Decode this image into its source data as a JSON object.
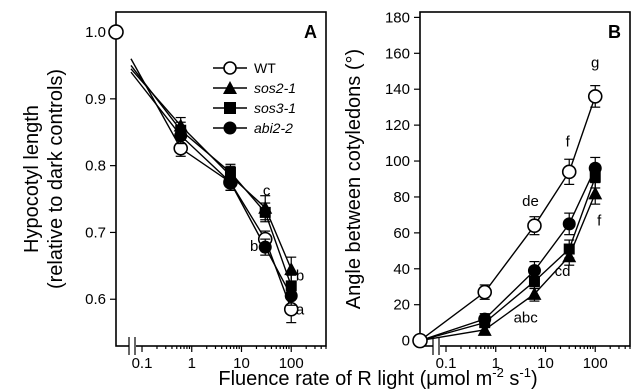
{
  "chart_data": [
    {
      "panel": "A",
      "type": "line",
      "ylabel_line1": "Hypocotyl length",
      "ylabel_line2": "(relative to dark controls)",
      "xscale": "log",
      "xlim": [
        0.03,
        500
      ],
      "ylim": [
        0.53,
        1.03
      ],
      "xticks": [
        {
          "v": 0.1,
          "label": "0.1"
        },
        {
          "v": 1,
          "label": "1"
        },
        {
          "v": 10,
          "label": "10"
        },
        {
          "v": 100,
          "label": "100"
        }
      ],
      "yticks": [
        {
          "v": 0.6,
          "label": "0.6"
        },
        {
          "v": 0.7,
          "label": "0.7"
        },
        {
          "v": 0.8,
          "label": "0.8"
        },
        {
          "v": 0.9,
          "label": "0.9"
        },
        {
          "v": 1.0,
          "label": "1.0"
        }
      ],
      "dark_point": {
        "y": 1.0
      },
      "x": [
        0.6,
        6,
        30,
        100
      ],
      "series": [
        {
          "name": "WT",
          "marker": "circle-open",
          "values": [
            0.826,
            0.775,
            0.69,
            0.585
          ],
          "err": [
            0.012,
            0.012,
            0.012,
            0.02
          ],
          "start": [
            0.06,
            0.96
          ]
        },
        {
          "name": "sos2-1",
          "marker": "triangle",
          "values": [
            0.86,
            0.785,
            0.737,
            0.645
          ],
          "err": [
            0.012,
            0.014,
            0.018,
            0.018
          ],
          "start": [
            0.06,
            0.945
          ]
        },
        {
          "name": "sos3-1",
          "marker": "square",
          "values": [
            0.853,
            0.79,
            0.73,
            0.62
          ],
          "err": [
            0.012,
            0.012,
            0.014,
            0.016
          ],
          "start": [
            0.06,
            0.95
          ]
        },
        {
          "name": "abi2-2",
          "marker": "circle",
          "values": [
            0.845,
            0.775,
            0.678,
            0.605
          ],
          "err": [
            0.012,
            0.012,
            0.012,
            0.014
          ],
          "start": [
            0.06,
            0.94
          ]
        }
      ],
      "annotations": [
        {
          "text": "c",
          "x": 32,
          "y": 0.755
        },
        {
          "text": "b",
          "x": 18,
          "y": 0.672
        },
        {
          "text": "b",
          "x": 150,
          "y": 0.628
        },
        {
          "text": "a",
          "x": 150,
          "y": 0.577
        }
      ],
      "legend": "top-right"
    },
    {
      "panel": "B",
      "type": "line",
      "ylabel": "Angle between cotyledons (°)",
      "xscale": "log",
      "xlim": [
        0.03,
        500
      ],
      "ylim": [
        -3,
        183
      ],
      "xticks": [
        {
          "v": 0.1,
          "label": "0.1"
        },
        {
          "v": 1,
          "label": "1"
        },
        {
          "v": 10,
          "label": "10"
        },
        {
          "v": 100,
          "label": "100"
        }
      ],
      "yticks": [
        {
          "v": 0,
          "label": "0"
        },
        {
          "v": 20,
          "label": "20"
        },
        {
          "v": 40,
          "label": "40"
        },
        {
          "v": 60,
          "label": "60"
        },
        {
          "v": 80,
          "label": "80"
        },
        {
          "v": 100,
          "label": "100"
        },
        {
          "v": 120,
          "label": "120"
        },
        {
          "v": 140,
          "label": "140"
        },
        {
          "v": 160,
          "label": "160"
        },
        {
          "v": 180,
          "label": "180"
        }
      ],
      "dark_point": {
        "y": 0
      },
      "x": [
        0.6,
        6,
        30,
        100
      ],
      "series": [
        {
          "name": "WT",
          "marker": "circle-open",
          "values": [
            27,
            64,
            94,
            136
          ],
          "err": [
            4,
            5,
            7,
            6
          ]
        },
        {
          "name": "sos2-1",
          "marker": "triangle",
          "values": [
            6,
            26,
            47,
            82
          ],
          "err": [
            2,
            4,
            5,
            6
          ]
        },
        {
          "name": "sos3-1",
          "marker": "square",
          "values": [
            10,
            33,
            51,
            91
          ],
          "err": [
            2,
            4,
            5,
            6
          ]
        },
        {
          "name": "abi2-2",
          "marker": "circle",
          "values": [
            12,
            39,
            65,
            96
          ],
          "err": [
            3,
            5,
            6,
            6
          ]
        }
      ],
      "annotations": [
        {
          "text": "g",
          "x": 100,
          "y": 152
        },
        {
          "text": "f",
          "x": 28,
          "y": 108
        },
        {
          "text": "de",
          "x": 5,
          "y": 75
        },
        {
          "text": "f",
          "x": 120,
          "y": 64
        },
        {
          "text": "cd",
          "x": 22,
          "y": 36
        },
        {
          "text": "abc",
          "x": 4,
          "y": 10
        }
      ]
    }
  ],
  "xlabel_prefix": "Fluence rate of R light (",
  "xlabel_mu": "μ",
  "xlabel_unit_mid": "mol m",
  "xlabel_exp1": "-2",
  "xlabel_s": " s",
  "xlabel_exp2": "-1",
  "xlabel_suffix": ")"
}
